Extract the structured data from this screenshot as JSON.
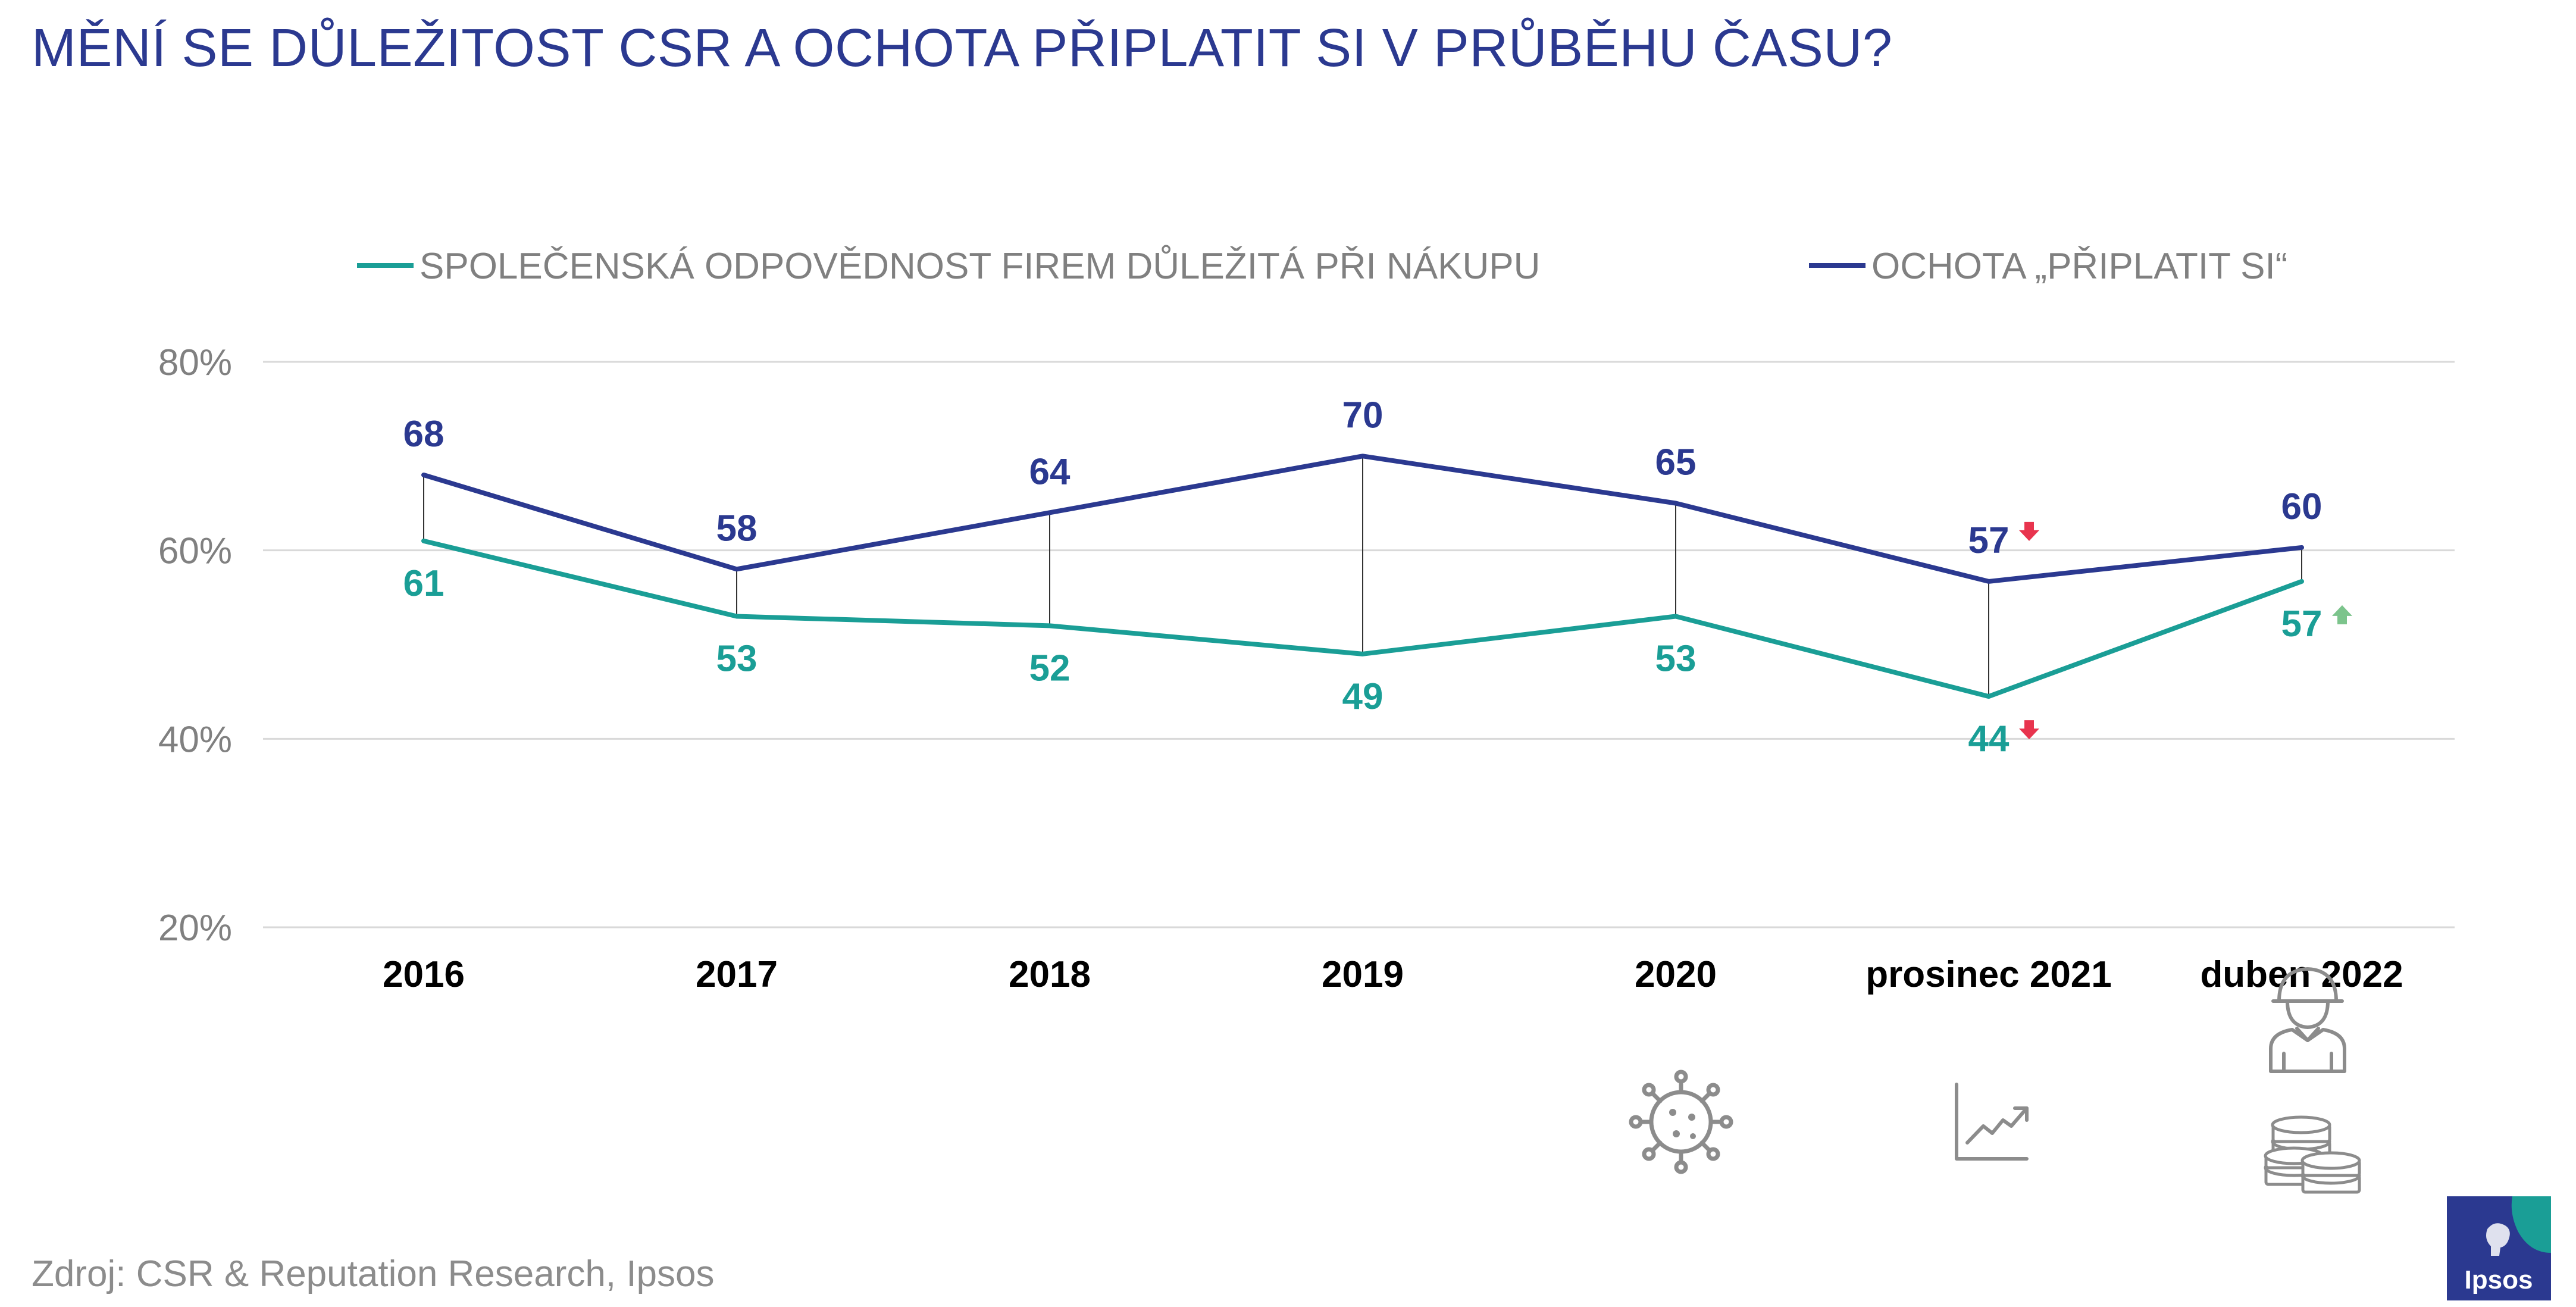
{
  "title": "MĚNÍ SE DŮLEŽITOST CSR A OCHOTA PŘIPLATIT SI V PRŮBĚHU ČASU?",
  "source": "Zdroj: CSR & Reputation Research, Ipsos",
  "logo": {
    "text": "Ipsos"
  },
  "colors": {
    "csr": "#1a9e96",
    "pay": "#2b3990",
    "title": "#2b3990",
    "axis_text": "#808080",
    "grid": "#d9d9d9",
    "down_arrow": "#e8344e",
    "up_arrow": "#7cc48c",
    "icon": "#8c8c8c",
    "logo_bg": "#2b3990",
    "logo_accent": "#1a9e96"
  },
  "chart_data": {
    "type": "line",
    "categories": [
      "2016",
      "2017",
      "2018",
      "2019",
      "2020",
      "prosinec 2021",
      "duben 2022"
    ],
    "series": [
      {
        "name": "SPOLEČENSKÁ ODPOVĚDNOST FIREM DŮLEŽITÁ PŘI NÁKUPU",
        "key": "csr",
        "values": [
          61,
          53,
          52,
          49,
          53,
          44.5,
          56.7
        ],
        "labels": [
          "61",
          "53",
          "52",
          "49",
          "53",
          "44",
          "57"
        ],
        "label_position": "below",
        "trend_markers": [
          null,
          null,
          null,
          null,
          null,
          "down",
          "up"
        ]
      },
      {
        "name": "OCHOTA „PŘIPLATIT SI“",
        "key": "pay",
        "values": [
          68,
          58,
          64,
          70,
          65,
          56.7,
          60.3
        ],
        "labels": [
          "68",
          "58",
          "64",
          "70",
          "65",
          "57",
          "60"
        ],
        "label_position": "above",
        "trend_markers": [
          null,
          null,
          null,
          null,
          null,
          "down",
          null
        ]
      }
    ],
    "ylim": [
      20,
      80
    ],
    "yticks": [
      20,
      40,
      60,
      80
    ],
    "ytick_labels": [
      "20%",
      "40%",
      "60%",
      "80%"
    ],
    "grid": true,
    "legend": "top",
    "connectors": "vertical lines between the two series at each category",
    "category_icons": [
      null,
      null,
      null,
      null,
      "virus-icon",
      "rising-trend-icon",
      "soldier-icon+coins-icon"
    ]
  }
}
